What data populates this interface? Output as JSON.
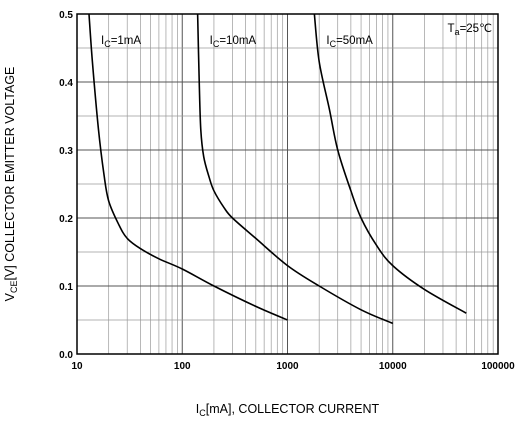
{
  "chart_data": {
    "type": "line",
    "title": "",
    "x_scale": "log",
    "xlim": [
      10,
      100000
    ],
    "ylim": [
      0,
      0.5
    ],
    "grid": true,
    "x_ticks": [
      "10",
      "100",
      "1000",
      "10000",
      "100000"
    ],
    "y_ticks": [
      "0.0",
      "0.1",
      "0.2",
      "0.3",
      "0.4",
      "0.5"
    ],
    "xlabel": {
      "pre": "I",
      "sub": "C",
      "post": "[mA], COLLECTOR CURRENT"
    },
    "ylabel": {
      "pre": "V",
      "sub": "CE",
      "post": "[V] COLLECTOR EMITTER VOLTAGE"
    },
    "condition": {
      "pre": "T",
      "sub": "a",
      "post": "=25℃"
    },
    "series": [
      {
        "name_pre": "I",
        "name_sub": "C",
        "name_post": "=1mA",
        "x": [
          13,
          14,
          16,
          18,
          20,
          25,
          30,
          40,
          60,
          100,
          200,
          500,
          1000
        ],
        "y": [
          0.5,
          0.43,
          0.33,
          0.265,
          0.225,
          0.19,
          0.17,
          0.155,
          0.14,
          0.125,
          0.1,
          0.07,
          0.05
        ]
      },
      {
        "name_pre": "I",
        "name_sub": "C",
        "name_post": "=10mA",
        "x": [
          140,
          145,
          150,
          160,
          180,
          200,
          250,
          300,
          500,
          1000,
          2000,
          5000,
          10000
        ],
        "y": [
          0.5,
          0.4,
          0.33,
          0.29,
          0.26,
          0.24,
          0.215,
          0.2,
          0.17,
          0.13,
          0.1,
          0.065,
          0.045
        ]
      },
      {
        "name_pre": "I",
        "name_sub": "C",
        "name_post": "=50mA",
        "x": [
          1800,
          2000,
          2500,
          3000,
          4000,
          5000,
          7000,
          10000,
          20000,
          50000
        ],
        "y": [
          0.5,
          0.43,
          0.36,
          0.3,
          0.24,
          0.2,
          0.16,
          0.13,
          0.095,
          0.06
        ]
      }
    ]
  }
}
